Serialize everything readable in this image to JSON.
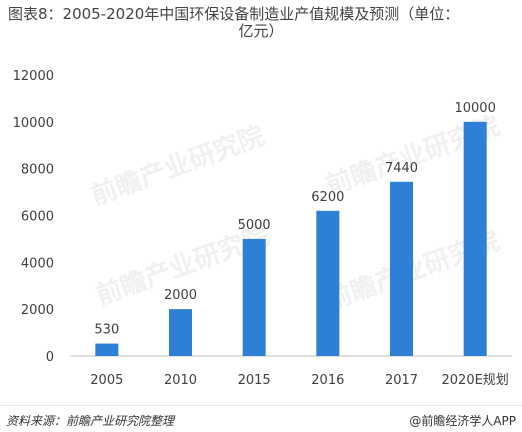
{
  "chart_data": {
    "type": "bar",
    "title_line1": "图表8：2005-2020年中国环保设备制造业产值规模及预测（单位：",
    "title_line2": "亿元）",
    "categories": [
      "2005",
      "2010",
      "2015",
      "2016",
      "2017",
      "2020E规划"
    ],
    "values": [
      530,
      2000,
      5000,
      6200,
      7440,
      10000
    ],
    "data_labels": [
      "530",
      "2000",
      "5000",
      "6200",
      "7440",
      "10000"
    ],
    "ylim": [
      0,
      12000
    ],
    "yticks": [
      0,
      2000,
      4000,
      6000,
      8000,
      10000,
      12000
    ],
    "grid": false,
    "bar_color": "#2e7fd6"
  },
  "watermark": "前瞻产业研究院",
  "footer": {
    "source": "资料来源：前瞻产业研究院整理",
    "brand": "@前瞻经济学人APP"
  }
}
